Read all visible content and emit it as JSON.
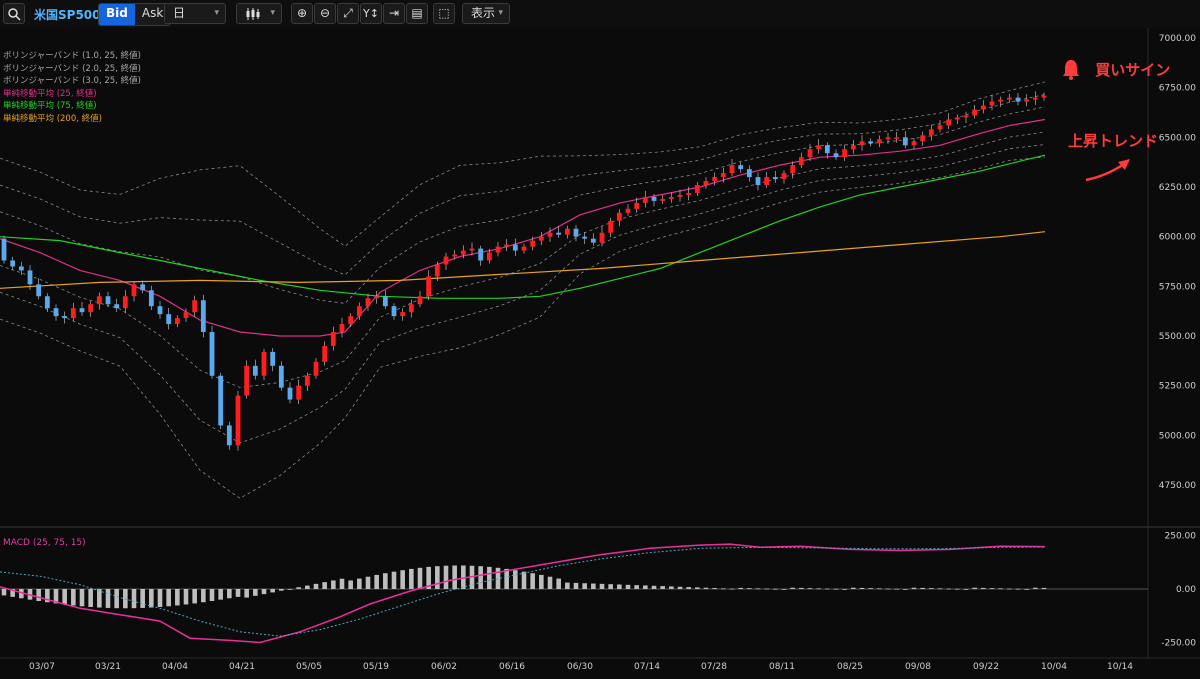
{
  "toolbar": {
    "search_icon": "magnifier-icon",
    "symbol": "米国SP500",
    "bid_label": "Bid",
    "ask_label": "Ask",
    "timeframe": "日",
    "chart_type_icon": "candlestick-icon",
    "display_label": "表示"
  },
  "legend": [
    {
      "text": "ボリンジャーバンド (1.0, 25, 終値)",
      "color": "#a8a8a8"
    },
    {
      "text": "ボリンジャーバンド (2.0, 25, 終値)",
      "color": "#a8a8a8"
    },
    {
      "text": "ボリンジャーバンド (3.0, 25, 終値)",
      "color": "#a8a8a8"
    },
    {
      "text": "単純移動平均 (25, 終値)",
      "color": "#e0308a"
    },
    {
      "text": "単純移動平均 (75, 終値)",
      "color": "#25d025"
    },
    {
      "text": "単純移動平均 (200, 終値)",
      "color": "#e8a020"
    }
  ],
  "annotations": {
    "buy_sign": "買いサイン",
    "uptrend": "上昇トレンド",
    "color": "#ff3b3b"
  },
  "price_axis": {
    "ticks": [
      "7000.00",
      "6750.00",
      "6500.00",
      "6250.00",
      "6000.00",
      "5750.00",
      "5500.00",
      "5250.00",
      "5000.00",
      "4750.00"
    ],
    "values": [
      7000,
      6750,
      6500,
      6250,
      6000,
      5750,
      5500,
      5250,
      5000,
      4750
    ]
  },
  "macd_axis": {
    "label": "MACD (25, 75, 15)",
    "ticks": [
      "250.00",
      "0.00",
      "-250.00"
    ],
    "values": [
      250,
      0,
      -250
    ]
  },
  "date_axis": [
    "03/07",
    "03/21",
    "04/04",
    "04/21",
    "05/05",
    "05/19",
    "06/02",
    "06/16",
    "06/30",
    "07/14",
    "07/28",
    "08/11",
    "08/25",
    "09/08",
    "09/22",
    "10/04",
    "10/14"
  ],
  "colors": {
    "up_candle": "#ff1f1f",
    "down_candle": "#5aaaf0",
    "bollinger": "#8a8a8a",
    "macd_line": "#e8309a",
    "signal_line": "#4aa8c8",
    "histogram": "#bdbdbd"
  }
}
